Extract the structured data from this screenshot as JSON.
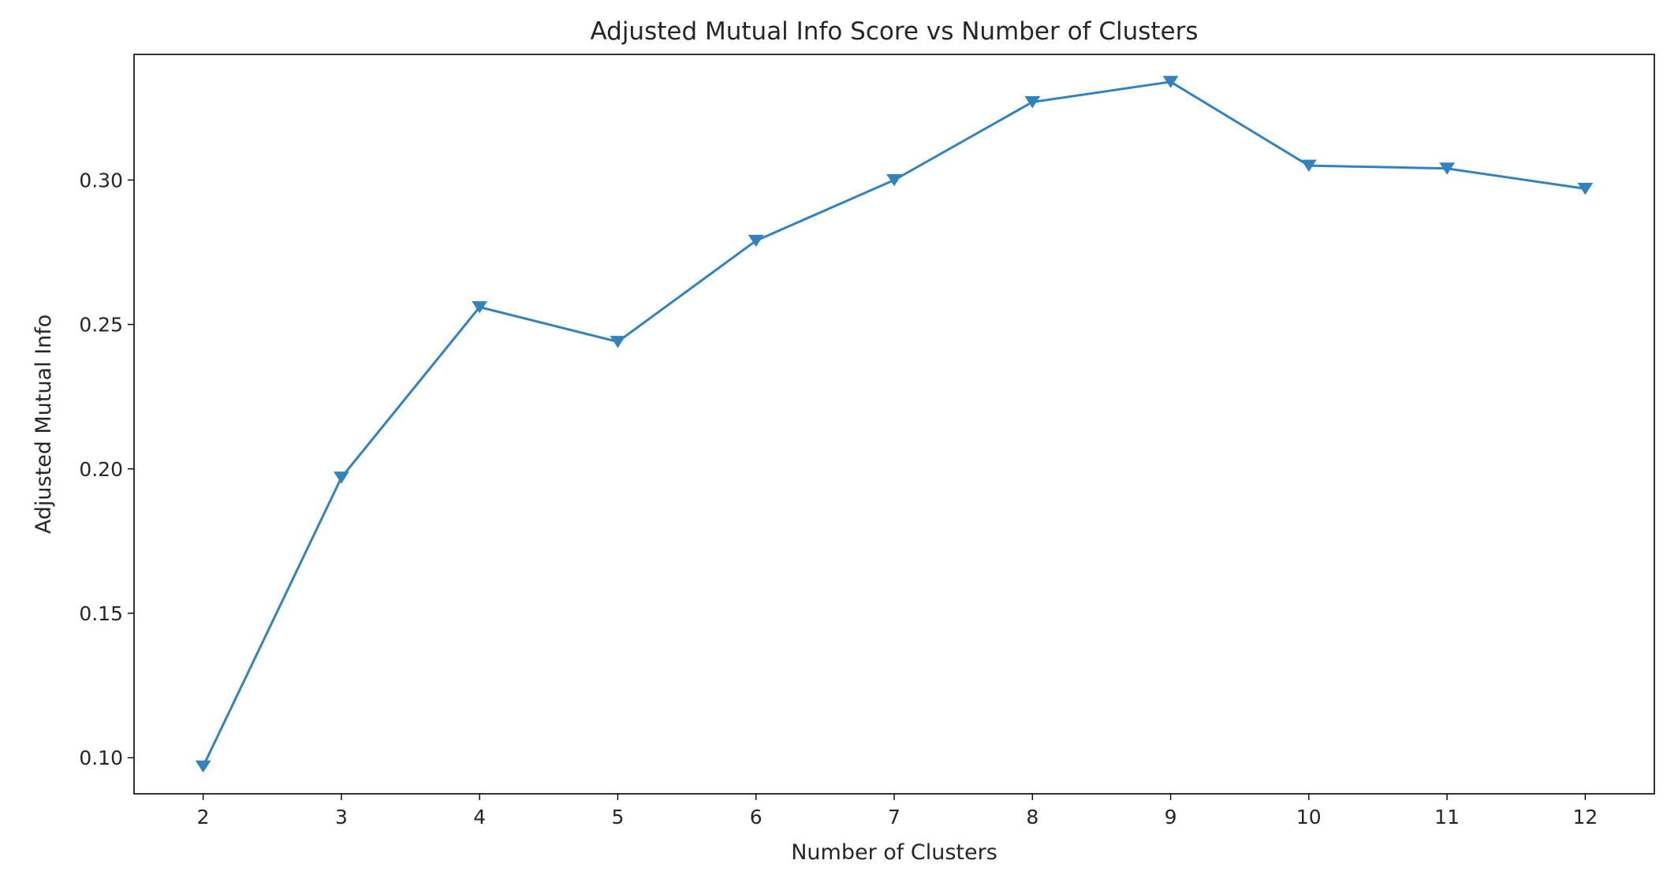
{
  "chart_data": {
    "type": "line",
    "title": "Adjusted Mutual Info Score vs Number of Clusters",
    "xlabel": "Number of Clusters",
    "ylabel": "Adjusted Mutual Info",
    "x": [
      2,
      3,
      4,
      5,
      6,
      7,
      8,
      9,
      10,
      11,
      12
    ],
    "series": [
      {
        "values": [
          0.097,
          0.197,
          0.256,
          0.244,
          0.279,
          0.3,
          0.327,
          0.334,
          0.305,
          0.304,
          0.297
        ],
        "color": "#3183bf",
        "marker": "triangle-down"
      }
    ],
    "xticks": [
      "2",
      "3",
      "4",
      "5",
      "6",
      "7",
      "8",
      "9",
      "10",
      "11",
      "12"
    ],
    "yticks": [
      "0.10",
      "0.15",
      "0.20",
      "0.25",
      "0.30"
    ],
    "xlim": [
      1.5,
      12.5
    ],
    "ylim": [
      0.0875,
      0.3435
    ],
    "grid": false,
    "legend": "none"
  }
}
